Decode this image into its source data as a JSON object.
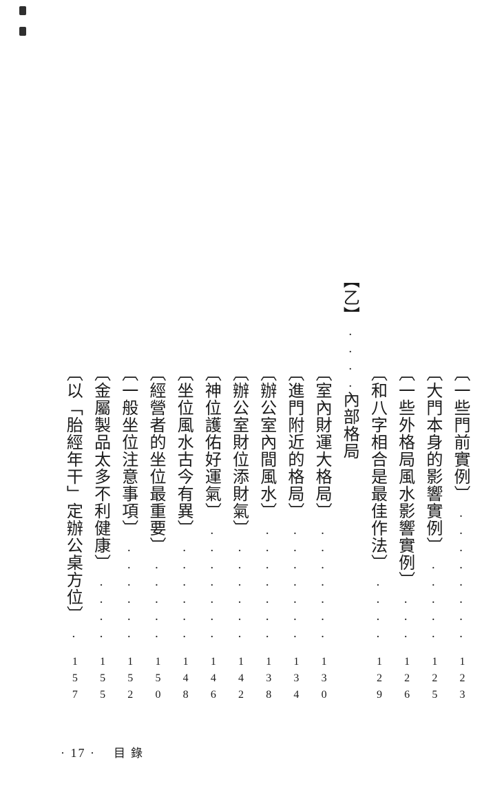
{
  "page": {
    "background": "#ffffff",
    "text_color": "#1b1b1b"
  },
  "toc": {
    "items": [
      {
        "type": "entry",
        "title": "〔一些門前實例〕",
        "page": "123"
      },
      {
        "type": "entry",
        "title": "〔大門本身的影響實例〕",
        "page": "125"
      },
      {
        "type": "entry",
        "title": "〔一些外格局風水影響實例〕",
        "page": "126"
      },
      {
        "type": "entry",
        "title": "〔和八字相合是最佳作法〕",
        "page": "129"
      },
      {
        "type": "section",
        "label": "【乙】",
        "title": "內部格局"
      },
      {
        "type": "entry",
        "title": "〔室內財運大格局〕",
        "page": "130"
      },
      {
        "type": "entry",
        "title": "〔進門附近的格局〕",
        "page": "134"
      },
      {
        "type": "entry",
        "title": "〔辦公室內間風水〕",
        "page": "138"
      },
      {
        "type": "entry",
        "title": "〔辦公室財位添財氣〕",
        "page": "142"
      },
      {
        "type": "entry",
        "title": "〔神位護佑好運氣〕",
        "page": "146"
      },
      {
        "type": "entry",
        "title": "〔坐位風水古今有異〕",
        "page": "148"
      },
      {
        "type": "entry",
        "title": "〔經營者的坐位最重要〕",
        "page": "150"
      },
      {
        "type": "entry",
        "title": "〔一般坐位注意事項〕",
        "page": "152"
      },
      {
        "type": "entry",
        "title": "〔金屬製品太多不利健康〕",
        "page": "155"
      },
      {
        "type": "entry",
        "title": "〔以「胎經年干」定辦公桌方位〕",
        "page": "157"
      }
    ]
  },
  "footer": {
    "page_number_label": "· 17 ·",
    "section_label": "目錄"
  }
}
